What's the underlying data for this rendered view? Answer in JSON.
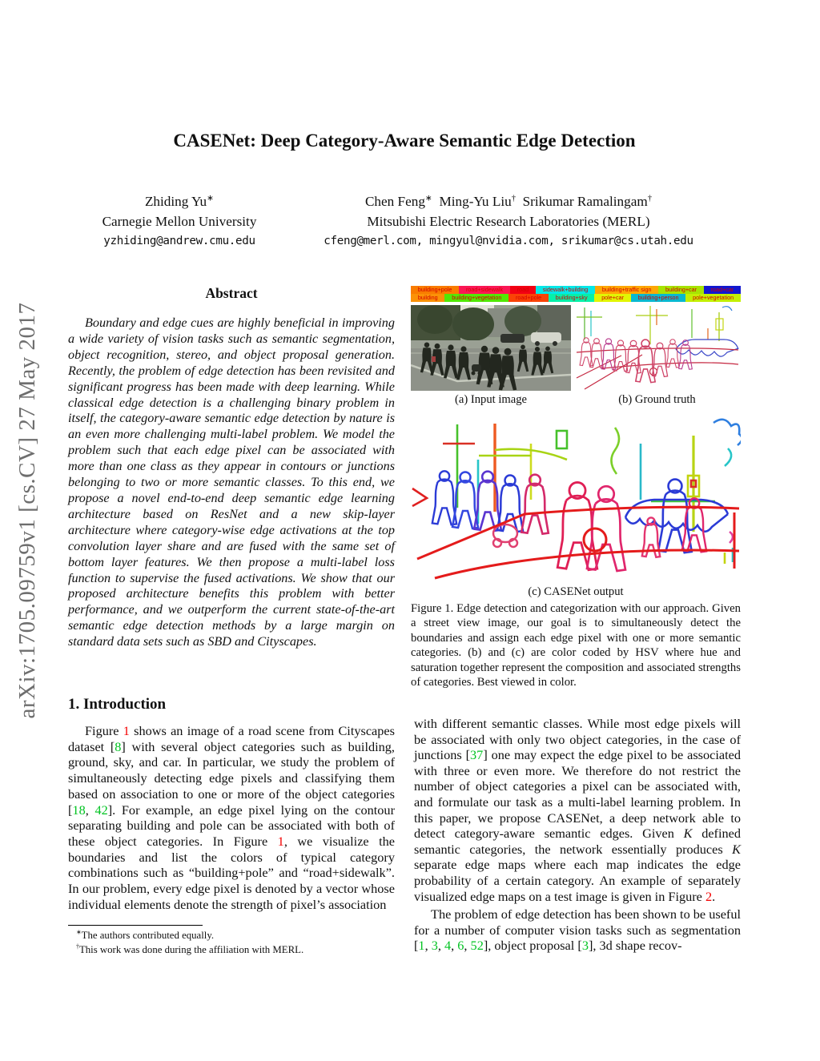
{
  "watermark": {
    "text": "arXiv:1705.09759v1  [cs.CV]  27 May 2017"
  },
  "header": {
    "title": "CASENet: Deep Category-Aware Semantic Edge Detection"
  },
  "authors": {
    "left": {
      "name_rich": [
        {
          "t": "Zhiding Yu"
        },
        {
          "t": "∗",
          "sup": true
        }
      ],
      "affiliation": "Carnegie Mellon University",
      "email": "yzhiding@andrew.cmu.edu"
    },
    "right": {
      "names_rich": [
        {
          "t": "Chen Feng"
        },
        {
          "t": "∗",
          "sup": true
        },
        {
          "t": " Ming-Yu Liu"
        },
        {
          "t": "†",
          "sup": true
        },
        {
          "t": " Srikumar Ramalingam"
        },
        {
          "t": "†",
          "sup": true
        }
      ],
      "affiliation": "Mitsubishi Electric Research Laboratories (MERL)",
      "emails": "cfeng@merl.com, mingyul@nvidia.com, srikumar@cs.utah.edu"
    }
  },
  "abstract": {
    "heading": "Abstract",
    "text": "Boundary and edge cues are highly beneficial in improving a wide variety of vision tasks such as semantic segmentation, object recognition, stereo, and object proposal generation. Recently, the problem of edge detection has been revisited and significant progress has been made with deep learning. While classical edge detection is a challenging binary problem in itself, the category-aware semantic edge detection by nature is an even more challenging multi-label problem. We model the problem such that each edge pixel can be associated with more than one class as they appear in contours or junctions belonging to two or more semantic classes. To this end, we propose a novel end-to-end deep semantic edge learning architecture based on ResNet and a new skip-layer architecture where category-wise edge activations at the top convolution layer share and are fused with the same set of bottom layer features. We then propose a multi-label loss function to supervise the fused activations. We show that our proposed architecture benefits this problem with better performance, and we outperform the current state-of-the-art semantic edge detection methods by a large margin on standard data sets such as SBD and Cityscapes."
  },
  "figure1": {
    "legend": {
      "text_color": "#d40000",
      "row1": [
        {
          "label": "building+pole",
          "color": "#f97c00"
        },
        {
          "label": "road+sidewalk",
          "color": "#fb1755"
        },
        {
          "label": "road",
          "color": "#f20013"
        },
        {
          "label": "sidewalk+building",
          "color": "#04e8e8"
        },
        {
          "label": "building+traffic sign",
          "color": "#fda705"
        },
        {
          "label": "building+car",
          "color": "#a6e403"
        },
        {
          "label": "road+car",
          "color": "#1217cf"
        }
      ],
      "row2": [
        {
          "label": "building",
          "color": "#fb9207"
        },
        {
          "label": "building+vegetation",
          "color": "#52e805"
        },
        {
          "label": "road+pole",
          "color": "#fa4306"
        },
        {
          "label": "building+sky",
          "color": "#06f0a9"
        },
        {
          "label": "pole+car",
          "color": "#e2f504"
        },
        {
          "label": "building+person",
          "color": "#0ab8d0"
        },
        {
          "label": "pole+vegetation",
          "color": "#c3ef04"
        }
      ]
    },
    "caption_a": "(a)  Input image",
    "caption_b": "(b)  Ground truth",
    "caption_c": "(c)  CASENet output",
    "caption": "Figure 1. Edge detection and categorization with our approach. Given a street view image, our goal is to simultaneously detect the boundaries and assign each edge pixel with one or more semantic categories. (b) and (c) are color coded by HSV where hue and saturation together represent the composition and associated strengths of categories. Best viewed in color."
  },
  "introduction": {
    "heading": "1. Introduction",
    "para1_rich": [
      {
        "t": "Figure "
      },
      {
        "t": "1",
        "c": "red"
      },
      {
        "t": " shows an image of a road scene from Cityscapes dataset ["
      },
      {
        "t": "8",
        "c": "green"
      },
      {
        "t": "] with several object categories such as building, ground, sky, and car. In particular, we study the problem of simultaneously detecting edge pixels and classifying them based on association to one or more of the object categories ["
      },
      {
        "t": "18",
        "c": "green"
      },
      {
        "t": ", "
      },
      {
        "t": "42",
        "c": "green"
      },
      {
        "t": "]. For example, an edge pixel lying on the contour separating building and pole can be associated with both of these object categories. In Figure "
      },
      {
        "t": "1",
        "c": "red"
      },
      {
        "t": ", we visualize the boundaries and list the colors of typical category combinations such as “building+pole” and “road+sidewalk”. In our problem, every edge pixel is denoted by a vector whose individual elements denote the strength of pixel’s association"
      }
    ]
  },
  "body_right": {
    "para1_rich": [
      {
        "t": "with different semantic classes. While most edge pixels will be associated with only two object categories, in the case of junctions ["
      },
      {
        "t": "37",
        "c": "green"
      },
      {
        "t": "] one may expect the edge pixel to be associated with three or even more. We therefore do not restrict the number of object categories a pixel can be associated with, and formulate our task as a multi-label learning problem. In this paper, we propose CASENet, a deep network able to detect category-aware semantic edges. Given "
      },
      {
        "t": "K",
        "i": true
      },
      {
        "t": " defined semantic categories, the network essentially produces "
      },
      {
        "t": "K",
        "i": true
      },
      {
        "t": " separate edge maps where each map indicates the edge probability of a certain category. An example of separately visualized edge maps on a test image is given in Figure "
      },
      {
        "t": "2",
        "c": "red"
      },
      {
        "t": "."
      }
    ],
    "para2_rich": [
      {
        "t": "The problem of edge detection has been shown to be useful for a number of computer vision tasks such as segmentation ["
      },
      {
        "t": "1",
        "c": "green"
      },
      {
        "t": ", "
      },
      {
        "t": "3",
        "c": "green"
      },
      {
        "t": ", "
      },
      {
        "t": "4",
        "c": "green"
      },
      {
        "t": ", "
      },
      {
        "t": "6",
        "c": "green"
      },
      {
        "t": ", "
      },
      {
        "t": "52",
        "c": "green"
      },
      {
        "t": "], object proposal ["
      },
      {
        "t": "3",
        "c": "green"
      },
      {
        "t": "], 3d shape recov-"
      }
    ]
  },
  "footnotes": {
    "items": [
      {
        "mark": "∗",
        "text": "The authors contributed equally."
      },
      {
        "mark": "†",
        "text": "This work was done during the affiliation with MERL."
      }
    ]
  },
  "colors": {
    "ref_red": "#f40000",
    "ref_green": "#00c321",
    "legend_text": "#d40000"
  }
}
